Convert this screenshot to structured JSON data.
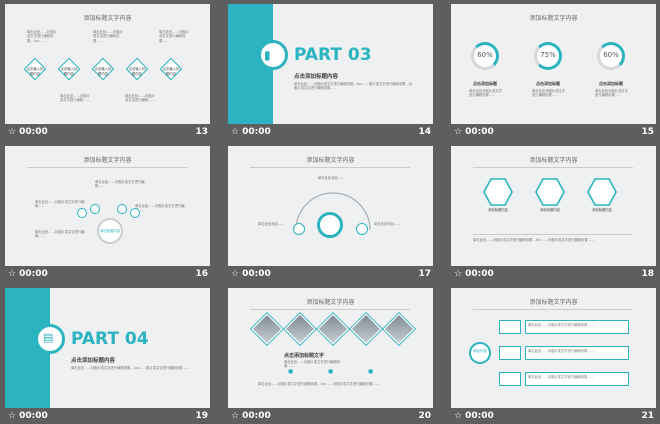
{
  "footer": {
    "time": "00:00"
  },
  "slides": [
    {
      "num": "13",
      "title": "添加标题文字内容",
      "labels": [
        "点击输入标题内容",
        "点击输入标题内容",
        "点击输入标题内容",
        "点击输入标题内容",
        "点击输入标题内容"
      ]
    },
    {
      "num": "14",
      "part": "PART 03",
      "subtitle": "点击添加标题内容"
    },
    {
      "num": "15",
      "title": "添加标题文字内容",
      "values": [
        "60%",
        "75%",
        "60%"
      ],
      "captions": [
        "点击添加标题",
        "点击添加标题",
        "点击添加标题"
      ]
    },
    {
      "num": "16",
      "title": "添加标题文字内容",
      "center": "添加标题内容"
    },
    {
      "num": "17",
      "title": "添加标题文字内容"
    },
    {
      "num": "18",
      "title": "添加标题文字内容",
      "labels": [
        "添加标题内容",
        "添加标题内容",
        "添加标题内容"
      ]
    },
    {
      "num": "19",
      "part": "PART 04",
      "subtitle": "点击添加标题内容"
    },
    {
      "num": "20",
      "title": "添加标题文字内容",
      "subtitle": "点击添加标题文字"
    },
    {
      "num": "21",
      "title": "添加标题文字内容",
      "center": "添加内容"
    }
  ]
}
